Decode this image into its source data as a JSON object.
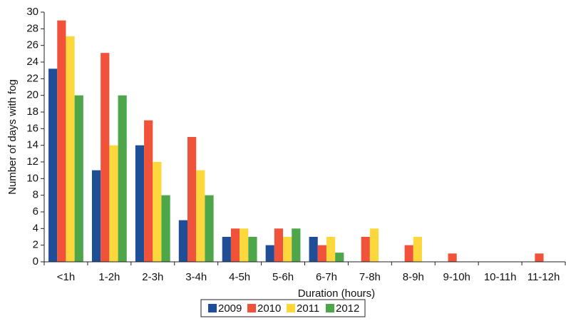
{
  "chart_data": {
    "type": "bar",
    "y_label": "Number of days with fog",
    "x_label": "Duration (hours)",
    "categories": [
      "<1h",
      "1-2h",
      "2-3h",
      "3-4h",
      "4-5h",
      "5-6h",
      "6-7h",
      "7-8h",
      "8-9h",
      "9-10h",
      "10-11h",
      "11-12h"
    ],
    "series": [
      {
        "name": "2009",
        "color": "#1f4e96",
        "values": [
          23.2,
          11,
          14,
          5,
          3,
          2,
          3,
          0,
          0,
          0,
          0,
          0
        ]
      },
      {
        "name": "2010",
        "color": "#f0533a",
        "values": [
          29,
          25.1,
          17,
          15,
          4,
          4,
          2,
          3,
          2,
          1,
          0,
          1
        ]
      },
      {
        "name": "2011",
        "color": "#fdd83c",
        "values": [
          27.1,
          14,
          12,
          11,
          4,
          3,
          3,
          4,
          3,
          0,
          0,
          0
        ]
      },
      {
        "name": "2012",
        "color": "#4ea64a",
        "values": [
          20,
          20,
          8,
          8,
          3,
          4,
          1.1,
          0,
          0,
          0,
          0,
          0
        ]
      }
    ],
    "ylim": [
      0,
      30
    ],
    "yticks": [
      0,
      2,
      4,
      6,
      8,
      10,
      12,
      14,
      16,
      18,
      20,
      22,
      24,
      26,
      28,
      30
    ],
    "legend": "bottom"
  }
}
